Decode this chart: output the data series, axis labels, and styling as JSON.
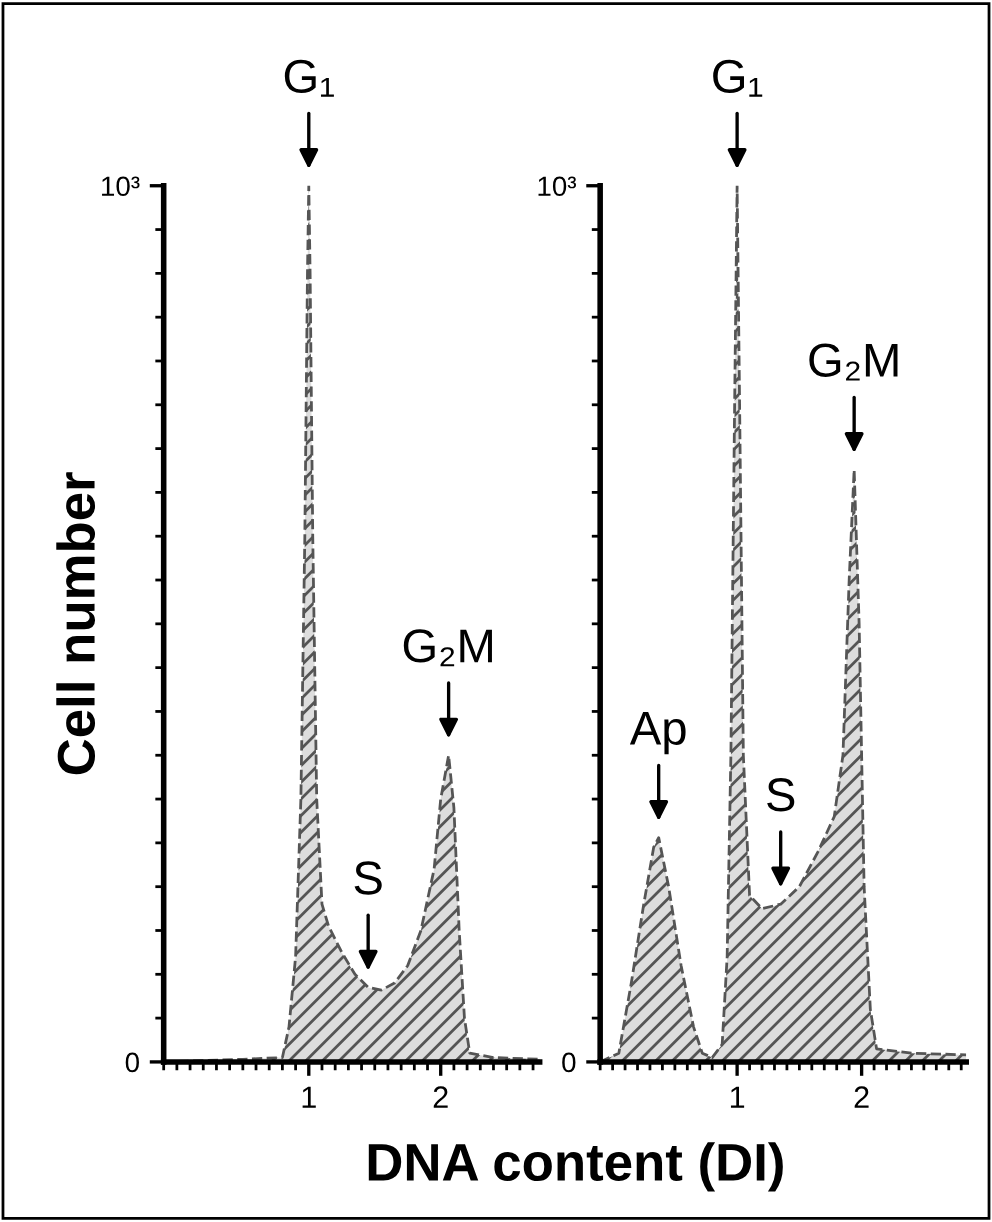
{
  "chart_data": [
    {
      "type": "area",
      "ylabel": "Cell number",
      "xlabel": "DNA content (DI)",
      "xlim": [
        -0.1,
        2.75
      ],
      "ylim": [
        0,
        1000
      ],
      "xticks": [
        1,
        2
      ],
      "yticks": [
        0,
        {
          "value": 1000,
          "label": "10³"
        }
      ],
      "grid": false,
      "series": [
        {
          "color": "#555555",
          "x": [
            -0.1,
            0.5,
            0.8,
            0.85,
            0.9,
            0.94,
            0.97,
            0.99,
            1.0,
            1.01,
            1.03,
            1.06,
            1.1,
            1.15,
            1.25,
            1.35,
            1.45,
            1.55,
            1.65,
            1.75,
            1.85,
            1.95,
            2.0,
            2.06,
            2.1,
            2.14,
            2.18,
            2.22,
            2.4,
            2.75
          ],
          "values": [
            0,
            3,
            5,
            40,
            120,
            300,
            600,
            900,
            1000,
            900,
            600,
            300,
            180,
            155,
            125,
            100,
            85,
            82,
            90,
            110,
            150,
            220,
            300,
            350,
            290,
            150,
            50,
            10,
            5,
            3
          ]
        }
      ],
      "annotations": [
        {
          "text": "G₁",
          "x": 1.0,
          "y": 1000
        },
        {
          "text": "S",
          "x": 1.45,
          "y": 85
        },
        {
          "text": "G₂M",
          "x": 2.06,
          "y": 350
        }
      ]
    },
    {
      "type": "area",
      "xlim": [
        -0.1,
        2.84
      ],
      "ylim": [
        0,
        1000
      ],
      "xticks": [
        1,
        2
      ],
      "yticks": [
        0,
        {
          "value": 1000,
          "label": "10³"
        }
      ],
      "grid": false,
      "series": [
        {
          "color": "#555555",
          "x": [
            -0.1,
            0.05,
            0.15,
            0.25,
            0.33,
            0.37,
            0.45,
            0.55,
            0.65,
            0.72,
            0.8,
            0.88,
            0.92,
            0.95,
            0.98,
            1.0,
            1.02,
            1.05,
            1.1,
            1.2,
            1.35,
            1.5,
            1.65,
            1.78,
            1.85,
            1.9,
            1.94,
            1.98,
            2.02,
            2.07,
            2.12,
            2.4,
            2.84
          ],
          "values": [
            0,
            10,
            90,
            180,
            245,
            256,
            200,
            110,
            40,
            10,
            5,
            20,
            120,
            350,
            750,
            1000,
            750,
            350,
            190,
            175,
            180,
            200,
            240,
            280,
            350,
            550,
            676,
            500,
            200,
            60,
            15,
            10,
            8
          ]
        }
      ],
      "annotations": [
        {
          "text": "Ap",
          "x": 0.37,
          "y": 256
        },
        {
          "text": "G₁",
          "x": 1.0,
          "y": 1000
        },
        {
          "text": "S",
          "x": 1.35,
          "y": 180
        },
        {
          "text": "G₂M",
          "x": 1.94,
          "y": 676
        }
      ]
    }
  ]
}
